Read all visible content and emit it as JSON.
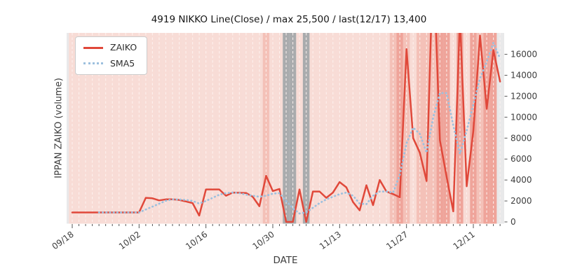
{
  "title": "4919 NIKKO Line(Close) / max 25,500 / last(12/17) 13,400",
  "x_label": "DATE",
  "y_label": "IPPAN ZAIKO (volume)",
  "legend": {
    "items": [
      {
        "label": "ZAIKO",
        "style": "solid",
        "color": "#e0483a"
      },
      {
        "label": "SMA5",
        "style": "dotted",
        "color": "#9dc0de"
      }
    ]
  },
  "colors": {
    "figure_background": "#ffffff",
    "axes_background": "#e9e9ea",
    "gridline": "#fdf3f0",
    "tick": "#555555",
    "tick_label": "#3d3d3d",
    "band_base": "#f8dcd6",
    "band_medium": "#f4c1b8",
    "band_strong": "#efa49a",
    "band_gray": "#a9abad",
    "zaiko_line": "#e0483a",
    "sma5_line": "#9dc0de"
  },
  "chart_data": {
    "type": "line",
    "title": "4919 NIKKO Line(Close) / max 25,500 / last(12/17) 13,400",
    "xlabel": "DATE",
    "ylabel": "IPPAN ZAIKO (volume)",
    "x_tick_labels": [
      "09/18",
      "10/02",
      "10/16",
      "10/30",
      "11/13",
      "11/27",
      "12/11"
    ],
    "x_major_tick_indices": [
      0,
      10,
      20,
      30,
      40,
      50,
      60
    ],
    "num_points": 65,
    "y_ticks": [
      0,
      2000,
      4000,
      6000,
      8000,
      10000,
      12000,
      14000,
      16000
    ],
    "ylim": [
      -170,
      18050
    ],
    "grid": "vertical-dashed-white",
    "legend_position": "upper-left",
    "max_value": 25500,
    "last_point": {
      "date": "12/17",
      "value": 13400
    },
    "series": [
      {
        "name": "ZAIKO",
        "style": "solid",
        "color": "#e0483a",
        "values": [
          900,
          900,
          900,
          900,
          900,
          900,
          900,
          900,
          900,
          900,
          900,
          2300,
          2250,
          2050,
          2150,
          2150,
          2100,
          1950,
          1800,
          600,
          3100,
          3100,
          3100,
          2500,
          2800,
          2780,
          2760,
          2400,
          1500,
          4400,
          2950,
          3150,
          0,
          0,
          3100,
          0,
          2900,
          2900,
          2300,
          2800,
          3800,
          3300,
          1900,
          1100,
          3500,
          1600,
          4000,
          2900,
          2650,
          2350,
          16500,
          8000,
          6600,
          3900,
          25500,
          7800,
          4300,
          1000,
          19500,
          3400,
          8700,
          17800,
          10800,
          16400,
          13400
        ]
      },
      {
        "name": "SMA5",
        "style": "dotted",
        "color": "#9dc0de",
        "values": [
          null,
          null,
          null,
          null,
          900,
          900,
          900,
          900,
          900,
          900,
          900,
          1180,
          1460,
          1740,
          2020,
          2150,
          2140,
          2100,
          2000,
          1750,
          2000,
          2300,
          2600,
          2750,
          2800,
          2750,
          2600,
          2500,
          2400,
          2500,
          2700,
          2750,
          2000,
          1300,
          800,
          900,
          1350,
          1800,
          2150,
          2400,
          2650,
          2800,
          2500,
          1750,
          1700,
          2500,
          2900,
          2900,
          2800,
          4500,
          7500,
          9000,
          8400,
          6600,
          10000,
          12300,
          12300,
          9200,
          6500,
          8700,
          11200,
          13700,
          15300,
          17100,
          15600
        ]
      }
    ],
    "background_bands": {
      "base_color": "#f8dcd6",
      "level_colors": {
        "1": "#f4c1b8",
        "2": "#efa49a",
        "gray": "#a9abad"
      },
      "day_levels": {
        "29": "1",
        "32": "gray",
        "33": "gray",
        "35": "gray",
        "48": "1",
        "49": "2",
        "50": "1",
        "52": "1",
        "53": "1",
        "54": "1",
        "55": "2",
        "56": "2",
        "58": "2",
        "60": "2",
        "61": "1",
        "62": "2",
        "63": "2"
      },
      "last_band_index": 63
    }
  }
}
